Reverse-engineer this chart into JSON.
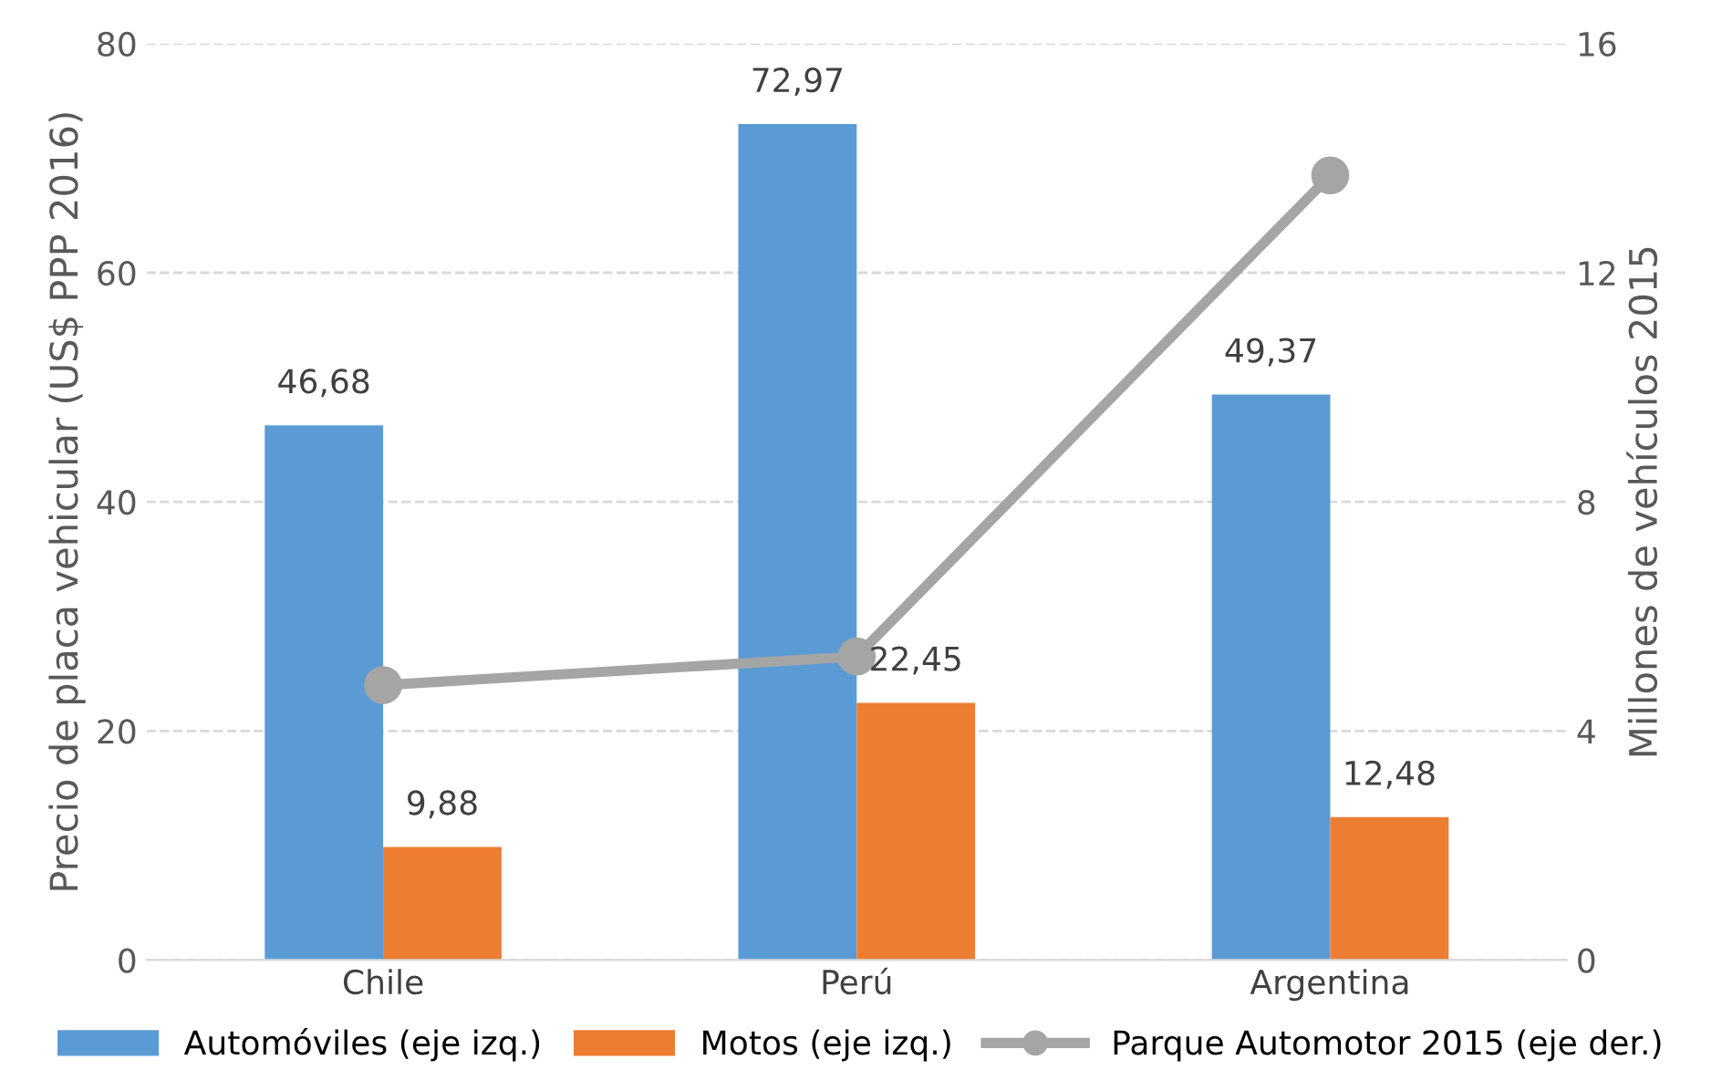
{
  "chart_data": {
    "type": "bar",
    "ylabel": "Precio de placa vehicular (US$ PPP 2016)",
    "y2label": "Millones de vehículos 2015",
    "categories": [
      "Chile",
      "Perú",
      "Argentina"
    ],
    "series": [
      {
        "name": "Automóviles (eje izq.)",
        "color": "#5b9bd5",
        "values": [
          46.68,
          72.97,
          49.37
        ],
        "value_labels": [
          "46,68",
          "72,97",
          "49,37"
        ]
      },
      {
        "name": "Motos (eje izq.)",
        "color": "#ed7d31",
        "values": [
          9.88,
          22.45,
          12.48
        ],
        "value_labels": [
          "9,88",
          "22,45",
          "12,48"
        ]
      },
      {
        "name": "Parque Automotor 2015 (eje der.)",
        "type": "line",
        "axis": "y2",
        "color": "#a5a5a5",
        "marker": "circle",
        "values": [
          4.8,
          5.3,
          13.7
        ]
      }
    ],
    "ylim": [
      0,
      80
    ],
    "yticks": [
      0,
      20,
      40,
      60,
      80
    ],
    "y2lim": [
      0,
      16
    ],
    "y2ticks": [
      0,
      4,
      8,
      12,
      16
    ],
    "grid": "y",
    "legend": "bottom"
  }
}
